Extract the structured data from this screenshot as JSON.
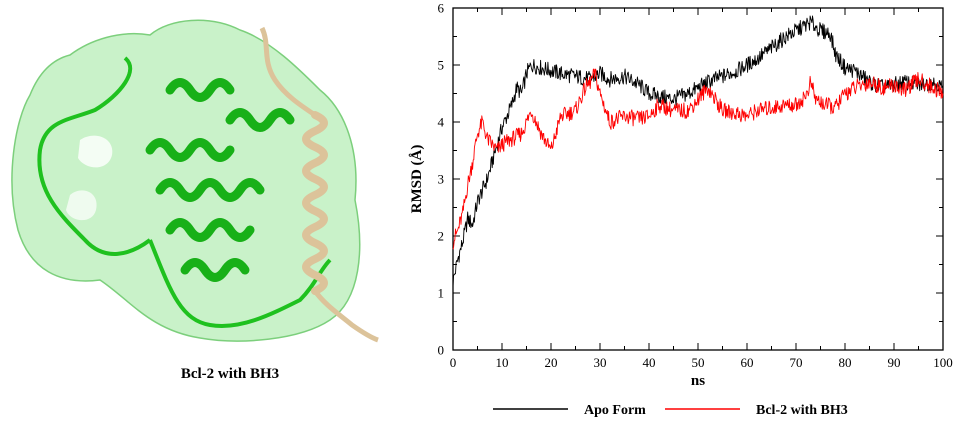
{
  "figure": {
    "left_panel_caption": "Bcl-2 with BH3"
  },
  "colors": {
    "apo": "#000000",
    "bh3": "#ff0000",
    "protein_green": "#1fc11f",
    "surface_green": "#bff0bf",
    "peptide_tan": "#dcc39a"
  },
  "chart_data": {
    "type": "line",
    "xlabel": "ns",
    "ylabel": "RMSD (Å)",
    "xlim": [
      0,
      100
    ],
    "ylim": [
      0,
      6
    ],
    "x_ticks": [
      "0",
      "10",
      "20",
      "30",
      "40",
      "50",
      "60",
      "70",
      "80",
      "90",
      "100"
    ],
    "y_ticks": [
      "0",
      "1",
      "2",
      "3",
      "4",
      "5",
      "6"
    ],
    "grid": false,
    "legend_position": "bottom",
    "series": [
      {
        "name": "Apo Form",
        "color": "#000000",
        "x": [
          0,
          1,
          2,
          3,
          4,
          5,
          6,
          7,
          8,
          9,
          10,
          11,
          12,
          13,
          14,
          15,
          16,
          18,
          20,
          22,
          25,
          28,
          30,
          32,
          35,
          38,
          40,
          42,
          45,
          48,
          50,
          52,
          55,
          58,
          60,
          62,
          65,
          68,
          70,
          72,
          73,
          75,
          77,
          78,
          80,
          82,
          85,
          88,
          90,
          92,
          95,
          98,
          100
        ],
        "y": [
          1.2,
          1.6,
          1.9,
          2.3,
          2.2,
          2.6,
          2.8,
          3.0,
          3.3,
          3.6,
          3.9,
          4.1,
          4.3,
          4.6,
          4.5,
          4.85,
          5.0,
          4.95,
          4.9,
          4.85,
          4.8,
          4.75,
          4.85,
          4.75,
          4.8,
          4.65,
          4.5,
          4.45,
          4.4,
          4.5,
          4.6,
          4.7,
          4.8,
          4.9,
          5.0,
          5.1,
          5.3,
          5.5,
          5.6,
          5.7,
          5.75,
          5.6,
          5.55,
          5.2,
          4.95,
          4.9,
          4.7,
          4.6,
          4.65,
          4.7,
          4.65,
          4.7,
          4.6
        ]
      },
      {
        "name": "Bcl-2 with BH3",
        "color": "#ff0000",
        "x": [
          0,
          1,
          2,
          3,
          4,
          5,
          6,
          7,
          8,
          9,
          10,
          12,
          14,
          16,
          18,
          20,
          22,
          25,
          27,
          28,
          29,
          30,
          32,
          35,
          38,
          40,
          42,
          45,
          48,
          50,
          52,
          55,
          58,
          60,
          62,
          65,
          68,
          70,
          72,
          73,
          74,
          76,
          78,
          80,
          82,
          85,
          88,
          90,
          92,
          95,
          98,
          100
        ],
        "y": [
          1.9,
          2.1,
          2.4,
          2.9,
          3.3,
          3.8,
          4.0,
          3.7,
          3.6,
          3.5,
          3.6,
          3.7,
          3.8,
          4.2,
          3.8,
          3.5,
          4.1,
          4.2,
          4.6,
          4.7,
          4.85,
          4.5,
          4.0,
          4.1,
          4.05,
          4.1,
          4.3,
          4.2,
          4.2,
          4.4,
          4.6,
          4.2,
          4.15,
          4.1,
          4.2,
          4.25,
          4.3,
          4.3,
          4.45,
          4.7,
          4.4,
          4.3,
          4.25,
          4.5,
          4.6,
          4.7,
          4.6,
          4.65,
          4.55,
          4.75,
          4.6,
          4.5
        ]
      }
    ]
  }
}
